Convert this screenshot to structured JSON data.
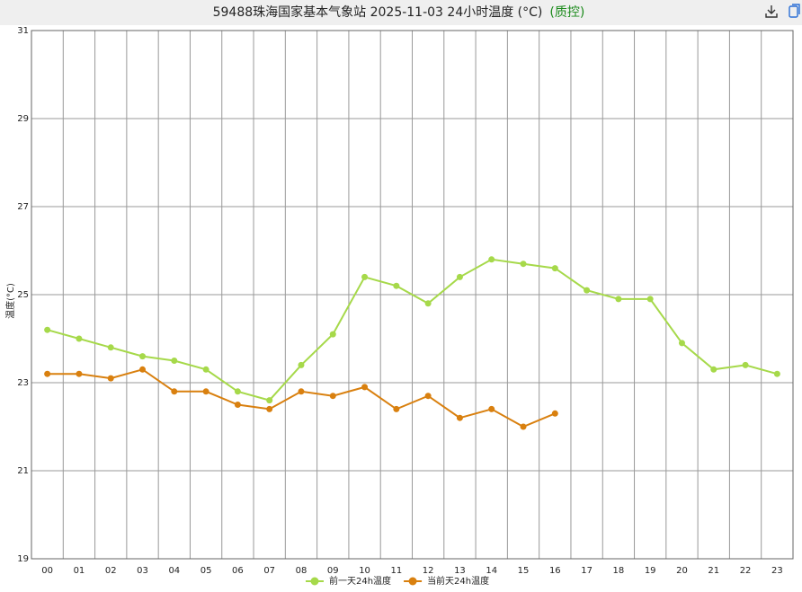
{
  "chart_data": {
    "type": "line",
    "title": "59488珠海国家基本气象站  2025-11-03  24小时温度 (°C)",
    "qc_label": "(质控)",
    "y_label": "温度(°C)",
    "categories": [
      "00",
      "01",
      "02",
      "03",
      "04",
      "05",
      "06",
      "07",
      "08",
      "09",
      "10",
      "11",
      "12",
      "13",
      "14",
      "15",
      "16",
      "17",
      "18",
      "19",
      "20",
      "21",
      "22",
      "23"
    ],
    "series": [
      {
        "name": "前一天24h温度",
        "color": "#a6d94a",
        "values": [
          24.2,
          24.0,
          23.8,
          23.6,
          23.5,
          23.3,
          22.8,
          22.6,
          23.4,
          24.1,
          25.4,
          25.2,
          24.8,
          25.4,
          25.8,
          25.7,
          25.6,
          25.1,
          24.9,
          24.9,
          23.9,
          23.3,
          23.4,
          23.2
        ]
      },
      {
        "name": "当前天24h温度",
        "color": "#d9800f",
        "values": [
          23.2,
          23.2,
          23.1,
          23.3,
          22.8,
          22.8,
          22.5,
          22.4,
          22.8,
          22.7,
          22.9,
          22.4,
          22.7,
          22.2,
          22.4,
          22.0,
          22.3,
          null,
          null,
          null,
          null,
          null,
          null,
          null
        ]
      }
    ],
    "ylim": [
      19,
      31
    ],
    "yticks": [
      19,
      21,
      23,
      25,
      27,
      29,
      31
    ],
    "grid": true,
    "legend": "bottom"
  }
}
